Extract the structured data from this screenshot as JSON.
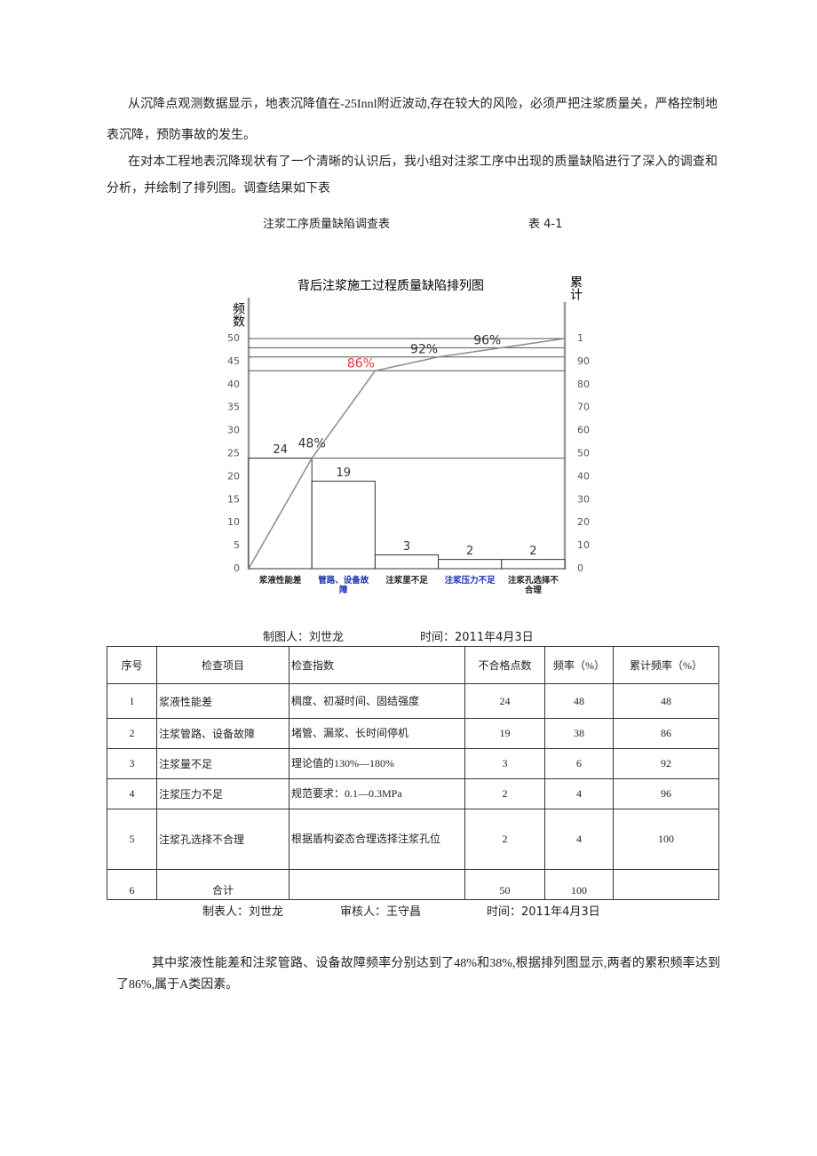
{
  "paragraphs": [
    "从沉降点观测数据显示，地表沉降值在-25Innl附近波动,存在较大的风险，必须严把注浆质量关，严格控制地表沉降，预防事故的发生。",
    "在对本工程地表沉降现状有了一个清晰的认识后，我小组对注浆工序中出现的质量缺陷进行了深入的调查和分析，并绘制了排列图。调查结果如下表"
  ],
  "table_caption": {
    "title": "注浆工序质量缺陷调查表",
    "number": "表 4-1"
  },
  "chart_data": {
    "type": "pareto",
    "title": "背后注浆施工过程质量缺陷排列图",
    "y_label": "频数",
    "y2_label": "累计",
    "categories": [
      "浆液性能差",
      "管路、设备故障",
      "注浆里不足",
      "注浆压力不足",
      "注浆孔选择不合理"
    ],
    "category_colors": [
      "#222222",
      "#1a2fb0",
      "#222222",
      "#1a2fb0",
      "#222222"
    ],
    "values": [
      24,
      19,
      3,
      2,
      2
    ],
    "bar_color": "#ffffff",
    "cumulative": {
      "axis": "y2",
      "values": [
        48,
        86,
        92,
        96,
        100
      ],
      "value_labels": [
        "48%",
        "86%",
        "92%",
        "96%",
        null
      ],
      "value_label_colors": [
        "#333333",
        "#e03a3a",
        "#333333",
        "#333333",
        null
      ],
      "color": "#8a8a8a"
    },
    "ylim": [
      0,
      50
    ],
    "yticks": [
      0,
      5,
      10,
      15,
      20,
      25,
      30,
      35,
      40,
      45,
      50
    ],
    "y2lim": [
      0,
      100
    ],
    "y2ticks": [
      0,
      10,
      20,
      30,
      40,
      50,
      60,
      70,
      80,
      90,
      {
        "value": 100,
        "label": "1"
      }
    ]
  },
  "chart_credit": {
    "author": "制图人：刘世龙",
    "time": "时间：2011年4月3日"
  },
  "table": {
    "header": [
      "序号",
      "检查项目",
      "检查指数",
      "不合格点数",
      "频率（%）",
      "累计频率（%）"
    ],
    "rows": [
      [
        1,
        "浆液性能差",
        "稠度、初凝时间、固结强度",
        24,
        48,
        48
      ],
      [
        2,
        "注浆管路、设备故障",
        "堵管、漏浆、长时间停机",
        19,
        38,
        86
      ],
      [
        3,
        "注浆量不足",
        "理论值的130%—180%",
        3,
        6,
        92
      ],
      [
        4,
        "注浆压力不足",
        "规范要求：0.1—0.3MPa",
        2,
        4,
        96
      ],
      [
        5,
        "注浆孔选择不合理",
        "根据盾构姿态合理选择注浆孔位",
        2,
        4,
        100
      ],
      [
        6,
        "合计",
        null,
        50,
        100,
        null
      ]
    ]
  },
  "signatures": {
    "maker": "制表人：刘世龙",
    "reviewer": "审核人：王守昌",
    "time": "时间：2011年4月3日"
  },
  "conclusion": "其中浆液性能差和注浆管路、设备故障频率分别达到了48%和38%,根据排列图显示,两者的累积频率达到了86%,属于A类因素。"
}
